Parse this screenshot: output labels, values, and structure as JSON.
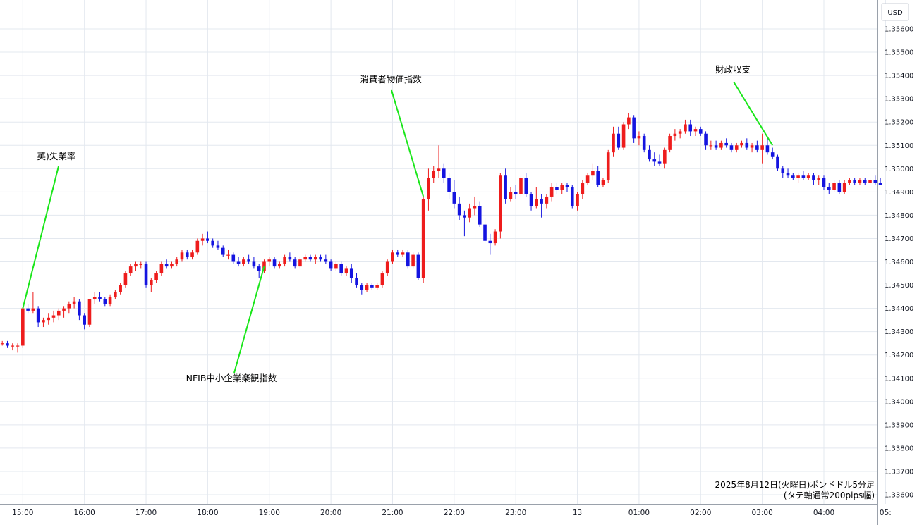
{
  "chart_data": {
    "type": "candlestick",
    "currency_label": "USD",
    "footnote": [
      "2025年8月12日(火曜日)ポンドドル5分足",
      "(タテ軸通常200pips幅)"
    ],
    "ylim": [
      1.336,
      1.357
    ],
    "y_ticks": [
      "1.35600",
      "1.35500",
      "1.35400",
      "1.35300",
      "1.35200",
      "1.35100",
      "1.35000",
      "1.34900",
      "1.34800",
      "1.34700",
      "1.34600",
      "1.34500",
      "1.34400",
      "1.34300",
      "1.34200",
      "1.34100",
      "1.34000",
      "1.33900",
      "1.33800",
      "1.33700",
      "1.33600"
    ],
    "x_ticks": [
      {
        "bar": 4,
        "label": "15:00"
      },
      {
        "bar": 16,
        "label": "16:00"
      },
      {
        "bar": 28,
        "label": "17:00"
      },
      {
        "bar": 40,
        "label": "18:00"
      },
      {
        "bar": 52,
        "label": "19:00"
      },
      {
        "bar": 64,
        "label": "20:00"
      },
      {
        "bar": 76,
        "label": "21:00"
      },
      {
        "bar": 88,
        "label": "22:00"
      },
      {
        "bar": 100,
        "label": "23:00"
      },
      {
        "bar": 112,
        "label": "13"
      },
      {
        "bar": 124,
        "label": "01:00"
      },
      {
        "bar": 136,
        "label": "02:00"
      },
      {
        "bar": 148,
        "label": "03:00"
      },
      {
        "bar": 160,
        "label": "04:00"
      },
      {
        "bar": 172,
        "label": "05:"
      }
    ],
    "candles": [
      [
        1.3425,
        1.3426,
        1.3424,
        1.3425
      ],
      [
        1.3425,
        1.3426,
        1.3423,
        1.3424
      ],
      [
        1.3424,
        1.3425,
        1.3422,
        1.3424
      ],
      [
        1.3424,
        1.3425,
        1.3421,
        1.3424
      ],
      [
        1.3424,
        1.344,
        1.3423,
        1.344
      ],
      [
        1.344,
        1.3442,
        1.3438,
        1.3439
      ],
      [
        1.3439,
        1.3447,
        1.3438,
        1.344
      ],
      [
        1.344,
        1.3441,
        1.3432,
        1.3434
      ],
      [
        1.3434,
        1.3436,
        1.3432,
        1.3435
      ],
      [
        1.3435,
        1.3438,
        1.3433,
        1.3436
      ],
      [
        1.3436,
        1.3439,
        1.3434,
        1.3437
      ],
      [
        1.3437,
        1.344,
        1.3435,
        1.3439
      ],
      [
        1.3439,
        1.3441,
        1.3436,
        1.344
      ],
      [
        1.344,
        1.3443,
        1.3438,
        1.3442
      ],
      [
        1.3442,
        1.3445,
        1.344,
        1.3443
      ],
      [
        1.3443,
        1.3444,
        1.3435,
        1.3437
      ],
      [
        1.3437,
        1.3438,
        1.3431,
        1.3433
      ],
      [
        1.3433,
        1.3444,
        1.3432,
        1.3444
      ],
      [
        1.3444,
        1.3447,
        1.3442,
        1.3445
      ],
      [
        1.3445,
        1.3447,
        1.3443,
        1.3444
      ],
      [
        1.3444,
        1.3445,
        1.3441,
        1.3442
      ],
      [
        1.3442,
        1.3446,
        1.3441,
        1.3445
      ],
      [
        1.3445,
        1.3448,
        1.3444,
        1.3447
      ],
      [
        1.3447,
        1.3451,
        1.3446,
        1.345
      ],
      [
        1.345,
        1.3456,
        1.3449,
        1.3455
      ],
      [
        1.3455,
        1.3459,
        1.3454,
        1.3458
      ],
      [
        1.3458,
        1.346,
        1.3456,
        1.3459
      ],
      [
        1.3459,
        1.346,
        1.3457,
        1.3459
      ],
      [
        1.3459,
        1.346,
        1.3449,
        1.345
      ],
      [
        1.345,
        1.3453,
        1.3447,
        1.3452
      ],
      [
        1.3452,
        1.3456,
        1.3451,
        1.3455
      ],
      [
        1.3455,
        1.346,
        1.3454,
        1.3459
      ],
      [
        1.3459,
        1.3461,
        1.3457,
        1.3458
      ],
      [
        1.3458,
        1.346,
        1.3457,
        1.3459
      ],
      [
        1.3459,
        1.3462,
        1.3458,
        1.3461
      ],
      [
        1.3461,
        1.3465,
        1.346,
        1.3464
      ],
      [
        1.3464,
        1.3465,
        1.3461,
        1.3462
      ],
      [
        1.3462,
        1.3465,
        1.3461,
        1.3464
      ],
      [
        1.3464,
        1.347,
        1.3463,
        1.3469
      ],
      [
        1.3469,
        1.3472,
        1.3467,
        1.347
      ],
      [
        1.347,
        1.3473,
        1.3468,
        1.3469
      ],
      [
        1.3469,
        1.347,
        1.3466,
        1.3467
      ],
      [
        1.3467,
        1.3469,
        1.3465,
        1.3466
      ],
      [
        1.3466,
        1.3467,
        1.3462,
        1.3463
      ],
      [
        1.3463,
        1.3465,
        1.3461,
        1.3463
      ],
      [
        1.3463,
        1.3464,
        1.3459,
        1.346
      ],
      [
        1.346,
        1.3462,
        1.3458,
        1.3459
      ],
      [
        1.3459,
        1.3462,
        1.3458,
        1.3461
      ],
      [
        1.3461,
        1.3463,
        1.3459,
        1.346
      ],
      [
        1.346,
        1.3462,
        1.3457,
        1.3458
      ],
      [
        1.3458,
        1.3459,
        1.3453,
        1.3456
      ],
      [
        1.3456,
        1.3461,
        1.3455,
        1.346
      ],
      [
        1.346,
        1.3462,
        1.3458,
        1.3461
      ],
      [
        1.3461,
        1.3462,
        1.3457,
        1.3458
      ],
      [
        1.3458,
        1.346,
        1.3457,
        1.3459
      ],
      [
        1.3459,
        1.3463,
        1.3458,
        1.3462
      ],
      [
        1.3462,
        1.3464,
        1.346,
        1.3461
      ],
      [
        1.3461,
        1.3462,
        1.3457,
        1.3458
      ],
      [
        1.3458,
        1.3462,
        1.3457,
        1.3461
      ],
      [
        1.3461,
        1.3463,
        1.346,
        1.3462
      ],
      [
        1.3462,
        1.3463,
        1.346,
        1.3461
      ],
      [
        1.3461,
        1.3463,
        1.3459,
        1.3462
      ],
      [
        1.3462,
        1.3463,
        1.346,
        1.3461
      ],
      [
        1.3461,
        1.3463,
        1.3459,
        1.346
      ],
      [
        1.346,
        1.3461,
        1.3456,
        1.3457
      ],
      [
        1.3457,
        1.346,
        1.3456,
        1.3459
      ],
      [
        1.3459,
        1.346,
        1.3454,
        1.3455
      ],
      [
        1.3455,
        1.3458,
        1.3454,
        1.3457
      ],
      [
        1.3457,
        1.3459,
        1.3451,
        1.3453
      ],
      [
        1.3453,
        1.3455,
        1.3449,
        1.345
      ],
      [
        1.345,
        1.3451,
        1.3446,
        1.3448
      ],
      [
        1.3448,
        1.3451,
        1.3447,
        1.345
      ],
      [
        1.345,
        1.3451,
        1.3448,
        1.3449
      ],
      [
        1.3449,
        1.3451,
        1.3448,
        1.345
      ],
      [
        1.345,
        1.3456,
        1.3449,
        1.3455
      ],
      [
        1.3455,
        1.3461,
        1.3454,
        1.346
      ],
      [
        1.346,
        1.3465,
        1.3459,
        1.3464
      ],
      [
        1.3464,
        1.3465,
        1.3462,
        1.3463
      ],
      [
        1.3463,
        1.3465,
        1.3462,
        1.3464
      ],
      [
        1.3464,
        1.3465,
        1.3457,
        1.3458
      ],
      [
        1.3458,
        1.3464,
        1.3457,
        1.3463
      ],
      [
        1.3463,
        1.3464,
        1.3452,
        1.3453
      ],
      [
        1.3453,
        1.3488,
        1.3451,
        1.3487
      ],
      [
        1.3487,
        1.35,
        1.3482,
        1.3496
      ],
      [
        1.3496,
        1.3501,
        1.3494,
        1.3499
      ],
      [
        1.3499,
        1.351,
        1.3496,
        1.35
      ],
      [
        1.35,
        1.3502,
        1.3494,
        1.3496
      ],
      [
        1.3496,
        1.3498,
        1.3487,
        1.349
      ],
      [
        1.349,
        1.3495,
        1.3483,
        1.3485
      ],
      [
        1.3485,
        1.3488,
        1.3478,
        1.348
      ],
      [
        1.348,
        1.3482,
        1.3471,
        1.3479
      ],
      [
        1.3479,
        1.3485,
        1.3477,
        1.3483
      ],
      [
        1.3483,
        1.3488,
        1.348,
        1.3484
      ],
      [
        1.3484,
        1.3486,
        1.3475,
        1.3476
      ],
      [
        1.3476,
        1.3479,
        1.3468,
        1.3469
      ],
      [
        1.3469,
        1.3472,
        1.3463,
        1.3468
      ],
      [
        1.3468,
        1.3474,
        1.3467,
        1.3473
      ],
      [
        1.3473,
        1.3498,
        1.347,
        1.3497
      ],
      [
        1.3497,
        1.35,
        1.3485,
        1.3487
      ],
      [
        1.3487,
        1.3492,
        1.3486,
        1.349
      ],
      [
        1.349,
        1.3493,
        1.3487,
        1.3489
      ],
      [
        1.3489,
        1.3497,
        1.3488,
        1.3496
      ],
      [
        1.3496,
        1.3498,
        1.3488,
        1.3489
      ],
      [
        1.3489,
        1.349,
        1.3482,
        1.3484
      ],
      [
        1.3484,
        1.3492,
        1.3483,
        1.3487
      ],
      [
        1.3487,
        1.3489,
        1.3479,
        1.3485
      ],
      [
        1.3485,
        1.3489,
        1.3483,
        1.3488
      ],
      [
        1.3488,
        1.3494,
        1.3486,
        1.3492
      ],
      [
        1.3492,
        1.3494,
        1.3489,
        1.3491
      ],
      [
        1.3491,
        1.3494,
        1.3489,
        1.3493
      ],
      [
        1.3493,
        1.3494,
        1.349,
        1.3492
      ],
      [
        1.3492,
        1.3493,
        1.3483,
        1.3484
      ],
      [
        1.3484,
        1.349,
        1.3482,
        1.3489
      ],
      [
        1.3489,
        1.3495,
        1.3487,
        1.3494
      ],
      [
        1.3494,
        1.3498,
        1.3493,
        1.3497
      ],
      [
        1.3497,
        1.3502,
        1.3495,
        1.3499
      ],
      [
        1.3499,
        1.3501,
        1.3492,
        1.3493
      ],
      [
        1.3493,
        1.3496,
        1.3492,
        1.3495
      ],
      [
        1.3495,
        1.3508,
        1.3494,
        1.3507
      ],
      [
        1.3507,
        1.3518,
        1.3505,
        1.3515
      ],
      [
        1.3515,
        1.3518,
        1.3508,
        1.3509
      ],
      [
        1.3509,
        1.352,
        1.3508,
        1.3519
      ],
      [
        1.3519,
        1.3524,
        1.3517,
        1.3522
      ],
      [
        1.3522,
        1.3523,
        1.3511,
        1.3513
      ],
      [
        1.3513,
        1.3516,
        1.351,
        1.3514
      ],
      [
        1.3514,
        1.3515,
        1.3507,
        1.3508
      ],
      [
        1.3508,
        1.351,
        1.3503,
        1.3504
      ],
      [
        1.3504,
        1.3507,
        1.3501,
        1.3503
      ],
      [
        1.3503,
        1.3506,
        1.3501,
        1.3502
      ],
      [
        1.3502,
        1.3509,
        1.35,
        1.3508
      ],
      [
        1.3508,
        1.3515,
        1.3507,
        1.3514
      ],
      [
        1.3514,
        1.3517,
        1.3512,
        1.3515
      ],
      [
        1.3515,
        1.3517,
        1.3513,
        1.3516
      ],
      [
        1.3516,
        1.3521,
        1.3515,
        1.3519
      ],
      [
        1.3519,
        1.3521,
        1.3514,
        1.3516
      ],
      [
        1.3516,
        1.3518,
        1.3514,
        1.3517
      ],
      [
        1.3517,
        1.3518,
        1.3514,
        1.3515
      ],
      [
        1.3515,
        1.3516,
        1.3508,
        1.351
      ],
      [
        1.351,
        1.3512,
        1.3508,
        1.351
      ],
      [
        1.351,
        1.3512,
        1.3508,
        1.3509
      ],
      [
        1.3509,
        1.3512,
        1.3508,
        1.3511
      ],
      [
        1.3511,
        1.3513,
        1.3509,
        1.351
      ],
      [
        1.351,
        1.3511,
        1.3507,
        1.3508
      ],
      [
        1.3508,
        1.3511,
        1.3507,
        1.351
      ],
      [
        1.351,
        1.3512,
        1.3509,
        1.3511
      ],
      [
        1.3511,
        1.3513,
        1.3508,
        1.3509
      ],
      [
        1.3509,
        1.3511,
        1.3507,
        1.351
      ],
      [
        1.351,
        1.3512,
        1.3507,
        1.3508
      ],
      [
        1.3508,
        1.3515,
        1.3502,
        1.351
      ],
      [
        1.351,
        1.3513,
        1.3506,
        1.3507
      ],
      [
        1.3507,
        1.3509,
        1.3504,
        1.3505
      ],
      [
        1.3505,
        1.3506,
        1.3499,
        1.35
      ],
      [
        1.35,
        1.3501,
        1.3496,
        1.3498
      ],
      [
        1.3498,
        1.35,
        1.3496,
        1.3497
      ],
      [
        1.3497,
        1.3498,
        1.3495,
        1.3496
      ],
      [
        1.3496,
        1.3498,
        1.3494,
        1.3497
      ],
      [
        1.3497,
        1.3499,
        1.3495,
        1.3496
      ],
      [
        1.3496,
        1.3498,
        1.3495,
        1.3497
      ],
      [
        1.3497,
        1.3498,
        1.3493,
        1.3495
      ],
      [
        1.3495,
        1.3497,
        1.3493,
        1.3496
      ],
      [
        1.3496,
        1.3497,
        1.3491,
        1.3492
      ],
      [
        1.3492,
        1.3494,
        1.3489,
        1.3491
      ],
      [
        1.3491,
        1.3495,
        1.349,
        1.3494
      ],
      [
        1.3494,
        1.3495,
        1.3489,
        1.349
      ],
      [
        1.349,
        1.3495,
        1.3489,
        1.3494
      ],
      [
        1.3494,
        1.3496,
        1.3493,
        1.3495
      ],
      [
        1.3495,
        1.3496,
        1.3493,
        1.3494
      ],
      [
        1.3494,
        1.3496,
        1.3493,
        1.3495
      ],
      [
        1.3495,
        1.3496,
        1.3493,
        1.3494
      ],
      [
        1.3494,
        1.3496,
        1.3493,
        1.3495
      ],
      [
        1.3495,
        1.3497,
        1.3493,
        1.3494
      ],
      [
        1.3494,
        1.3496,
        1.3493,
        1.3493
      ]
    ],
    "annotations": [
      {
        "label": "英)失業率",
        "bar": 4,
        "price": 1.344
      },
      {
        "label": "NFIB中小企業楽観指数",
        "bar": 51,
        "price": 1.3458
      },
      {
        "label": "消費者物価指数",
        "bar": 82,
        "price": 1.3488
      },
      {
        "label": "財政収支",
        "bar": 150,
        "price": 1.351
      }
    ],
    "colors": {
      "up": "#ee1c1c",
      "down": "#1414e0",
      "grid": "#e3e8ef",
      "annotation_line": "#19e619"
    }
  }
}
